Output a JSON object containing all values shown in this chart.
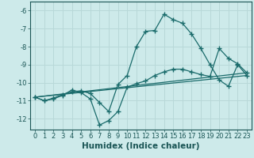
{
  "xlabel": "Humidex (Indice chaleur)",
  "background_color": "#cdeaea",
  "grid_color": "#b8d8d8",
  "line_color": "#1a6b6b",
  "xlim": [
    -0.5,
    23.5
  ],
  "ylim": [
    -12.6,
    -5.5
  ],
  "yticks": [
    -12,
    -11,
    -10,
    -9,
    -8,
    -7,
    -6
  ],
  "xticks": [
    0,
    1,
    2,
    3,
    4,
    5,
    6,
    7,
    8,
    9,
    10,
    11,
    12,
    13,
    14,
    15,
    16,
    17,
    18,
    19,
    20,
    21,
    22,
    23
  ],
  "series": [
    {
      "x": [
        0,
        1,
        2,
        3,
        4,
        5,
        6,
        7,
        8,
        9,
        10,
        11,
        12,
        13,
        14,
        15,
        16,
        17,
        18,
        19,
        20,
        21,
        22,
        23
      ],
      "y": [
        -10.8,
        -11.0,
        -10.9,
        -10.7,
        -10.4,
        -10.55,
        -10.9,
        -12.35,
        -12.1,
        -11.6,
        -10.25,
        -10.05,
        -9.9,
        -9.6,
        -9.4,
        -9.25,
        -9.25,
        -9.4,
        -9.55,
        -9.65,
        -8.1,
        -8.65,
        -8.95,
        -9.45
      ],
      "marker": true
    },
    {
      "x": [
        0,
        1,
        2,
        3,
        4,
        5,
        6,
        7,
        8,
        9,
        10,
        11,
        12,
        13,
        14,
        15,
        16,
        17,
        18,
        19,
        20,
        21,
        22,
        23
      ],
      "y": [
        -10.8,
        -11.0,
        -10.85,
        -10.65,
        -10.5,
        -10.45,
        -10.6,
        -11.1,
        -11.6,
        -10.1,
        -9.6,
        -8.0,
        -7.15,
        -7.1,
        -6.2,
        -6.5,
        -6.7,
        -7.3,
        -8.1,
        -9.0,
        -9.85,
        -10.2,
        -9.0,
        -9.6
      ],
      "marker": true
    },
    {
      "x": [
        0,
        23
      ],
      "y": [
        -10.8,
        -9.45
      ],
      "marker": false
    },
    {
      "x": [
        0,
        23
      ],
      "y": [
        -10.8,
        -9.6
      ],
      "marker": false
    }
  ],
  "font_color": "#1a5555",
  "tick_fontsize": 6,
  "label_fontsize": 7.5
}
